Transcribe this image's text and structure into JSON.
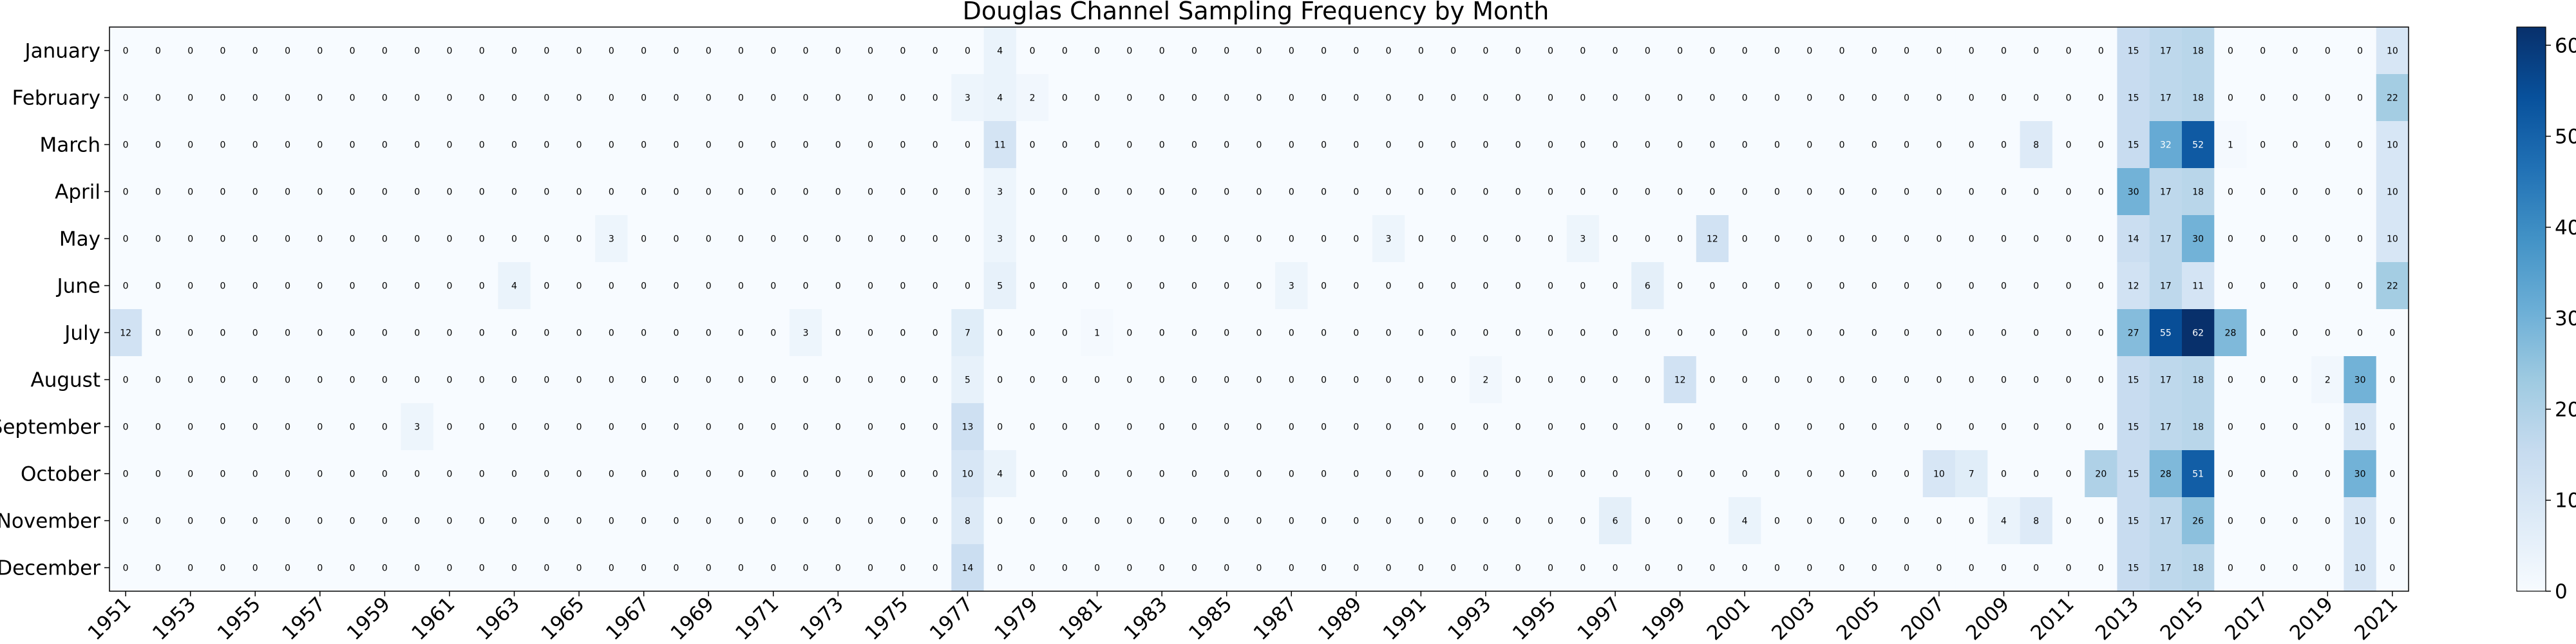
{
  "chart_data": {
    "type": "heatmap",
    "title": "Douglas Channel Sampling Frequency by Month",
    "colormap": "Blues",
    "colors": {
      "low": "#f7fbff",
      "high": "#08306b"
    },
    "x": [
      1951,
      1952,
      1953,
      1954,
      1955,
      1956,
      1957,
      1958,
      1959,
      1960,
      1961,
      1962,
      1963,
      1964,
      1965,
      1966,
      1967,
      1968,
      1969,
      1970,
      1971,
      1972,
      1973,
      1974,
      1975,
      1976,
      1977,
      1978,
      1979,
      1980,
      1981,
      1982,
      1983,
      1984,
      1985,
      1986,
      1987,
      1988,
      1989,
      1990,
      1991,
      1992,
      1993,
      1994,
      1995,
      1996,
      1997,
      1998,
      1999,
      2000,
      2001,
      2002,
      2003,
      2004,
      2005,
      2006,
      2007,
      2008,
      2009,
      2010,
      2011,
      2012,
      2013,
      2014,
      2015,
      2016,
      2017,
      2018,
      2019,
      2020,
      2021
    ],
    "x_tick_labels": [
      "1951",
      "1953",
      "1955",
      "1957",
      "1959",
      "1961",
      "1963",
      "1965",
      "1967",
      "1969",
      "1971",
      "1973",
      "1975",
      "1977",
      "1979",
      "1981",
      "1983",
      "1985",
      "1987",
      "1989",
      "1991",
      "1993",
      "1995",
      "1997",
      "1999",
      "2001",
      "2003",
      "2005",
      "2007",
      "2009",
      "2011",
      "2013",
      "2015",
      "2017",
      "2019",
      "2021"
    ],
    "y": [
      "January",
      "February",
      "March",
      "April",
      "May",
      "June",
      "July",
      "August",
      "September",
      "October",
      "November",
      "December"
    ],
    "z": [
      [
        0,
        0,
        0,
        0,
        0,
        0,
        0,
        0,
        0,
        0,
        0,
        0,
        0,
        0,
        0,
        0,
        0,
        0,
        0,
        0,
        0,
        0,
        0,
        0,
        0,
        0,
        0,
        4,
        0,
        0,
        0,
        0,
        0,
        0,
        0,
        0,
        0,
        0,
        0,
        0,
        0,
        0,
        0,
        0,
        0,
        0,
        0,
        0,
        0,
        0,
        0,
        0,
        0,
        0,
        0,
        0,
        0,
        0,
        0,
        0,
        0,
        0,
        15,
        17,
        18,
        0,
        0,
        0,
        0,
        0,
        10
      ],
      [
        0,
        0,
        0,
        0,
        0,
        0,
        0,
        0,
        0,
        0,
        0,
        0,
        0,
        0,
        0,
        0,
        0,
        0,
        0,
        0,
        0,
        0,
        0,
        0,
        0,
        0,
        3,
        4,
        2,
        0,
        0,
        0,
        0,
        0,
        0,
        0,
        0,
        0,
        0,
        0,
        0,
        0,
        0,
        0,
        0,
        0,
        0,
        0,
        0,
        0,
        0,
        0,
        0,
        0,
        0,
        0,
        0,
        0,
        0,
        0,
        0,
        0,
        15,
        17,
        18,
        0,
        0,
        0,
        0,
        0,
        22
      ],
      [
        0,
        0,
        0,
        0,
        0,
        0,
        0,
        0,
        0,
        0,
        0,
        0,
        0,
        0,
        0,
        0,
        0,
        0,
        0,
        0,
        0,
        0,
        0,
        0,
        0,
        0,
        0,
        11,
        0,
        0,
        0,
        0,
        0,
        0,
        0,
        0,
        0,
        0,
        0,
        0,
        0,
        0,
        0,
        0,
        0,
        0,
        0,
        0,
        0,
        0,
        0,
        0,
        0,
        0,
        0,
        0,
        0,
        0,
        0,
        8,
        0,
        0,
        15,
        32,
        52,
        1,
        0,
        0,
        0,
        0,
        10
      ],
      [
        0,
        0,
        0,
        0,
        0,
        0,
        0,
        0,
        0,
        0,
        0,
        0,
        0,
        0,
        0,
        0,
        0,
        0,
        0,
        0,
        0,
        0,
        0,
        0,
        0,
        0,
        0,
        3,
        0,
        0,
        0,
        0,
        0,
        0,
        0,
        0,
        0,
        0,
        0,
        0,
        0,
        0,
        0,
        0,
        0,
        0,
        0,
        0,
        0,
        0,
        0,
        0,
        0,
        0,
        0,
        0,
        0,
        0,
        0,
        0,
        0,
        0,
        30,
        17,
        18,
        0,
        0,
        0,
        0,
        0,
        10
      ],
      [
        0,
        0,
        0,
        0,
        0,
        0,
        0,
        0,
        0,
        0,
        0,
        0,
        0,
        0,
        0,
        3,
        0,
        0,
        0,
        0,
        0,
        0,
        0,
        0,
        0,
        0,
        0,
        3,
        0,
        0,
        0,
        0,
        0,
        0,
        0,
        0,
        0,
        0,
        0,
        3,
        0,
        0,
        0,
        0,
        0,
        3,
        0,
        0,
        0,
        12,
        0,
        0,
        0,
        0,
        0,
        0,
        0,
        0,
        0,
        0,
        0,
        0,
        14,
        17,
        30,
        0,
        0,
        0,
        0,
        0,
        10
      ],
      [
        0,
        0,
        0,
        0,
        0,
        0,
        0,
        0,
        0,
        0,
        0,
        0,
        4,
        0,
        0,
        0,
        0,
        0,
        0,
        0,
        0,
        0,
        0,
        0,
        0,
        0,
        0,
        5,
        0,
        0,
        0,
        0,
        0,
        0,
        0,
        0,
        3,
        0,
        0,
        0,
        0,
        0,
        0,
        0,
        0,
        0,
        0,
        6,
        0,
        0,
        0,
        0,
        0,
        0,
        0,
        0,
        0,
        0,
        0,
        0,
        0,
        0,
        12,
        17,
        11,
        0,
        0,
        0,
        0,
        0,
        22
      ],
      [
        12,
        0,
        0,
        0,
        0,
        0,
        0,
        0,
        0,
        0,
        0,
        0,
        0,
        0,
        0,
        0,
        0,
        0,
        0,
        0,
        0,
        3,
        0,
        0,
        0,
        0,
        7,
        0,
        0,
        0,
        1,
        0,
        0,
        0,
        0,
        0,
        0,
        0,
        0,
        0,
        0,
        0,
        0,
        0,
        0,
        0,
        0,
        0,
        0,
        0,
        0,
        0,
        0,
        0,
        0,
        0,
        0,
        0,
        0,
        0,
        0,
        0,
        27,
        55,
        62,
        28,
        0,
        0,
        0,
        0,
        0
      ],
      [
        0,
        0,
        0,
        0,
        0,
        0,
        0,
        0,
        0,
        0,
        0,
        0,
        0,
        0,
        0,
        0,
        0,
        0,
        0,
        0,
        0,
        0,
        0,
        0,
        0,
        0,
        5,
        0,
        0,
        0,
        0,
        0,
        0,
        0,
        0,
        0,
        0,
        0,
        0,
        0,
        0,
        0,
        2,
        0,
        0,
        0,
        0,
        0,
        12,
        0,
        0,
        0,
        0,
        0,
        0,
        0,
        0,
        0,
        0,
        0,
        0,
        0,
        15,
        17,
        18,
        0,
        0,
        0,
        2,
        30,
        0
      ],
      [
        0,
        0,
        0,
        0,
        0,
        0,
        0,
        0,
        0,
        3,
        0,
        0,
        0,
        0,
        0,
        0,
        0,
        0,
        0,
        0,
        0,
        0,
        0,
        0,
        0,
        0,
        13,
        0,
        0,
        0,
        0,
        0,
        0,
        0,
        0,
        0,
        0,
        0,
        0,
        0,
        0,
        0,
        0,
        0,
        0,
        0,
        0,
        0,
        0,
        0,
        0,
        0,
        0,
        0,
        0,
        0,
        0,
        0,
        0,
        0,
        0,
        0,
        15,
        17,
        18,
        0,
        0,
        0,
        0,
        10,
        0
      ],
      [
        0,
        0,
        0,
        0,
        0,
        0,
        0,
        0,
        0,
        0,
        0,
        0,
        0,
        0,
        0,
        0,
        0,
        0,
        0,
        0,
        0,
        0,
        0,
        0,
        0,
        0,
        10,
        4,
        0,
        0,
        0,
        0,
        0,
        0,
        0,
        0,
        0,
        0,
        0,
        0,
        0,
        0,
        0,
        0,
        0,
        0,
        0,
        0,
        0,
        0,
        0,
        0,
        0,
        0,
        0,
        0,
        10,
        7,
        0,
        0,
        0,
        20,
        15,
        28,
        51,
        0,
        0,
        0,
        0,
        30,
        0
      ],
      [
        0,
        0,
        0,
        0,
        0,
        0,
        0,
        0,
        0,
        0,
        0,
        0,
        0,
        0,
        0,
        0,
        0,
        0,
        0,
        0,
        0,
        0,
        0,
        0,
        0,
        0,
        8,
        0,
        0,
        0,
        0,
        0,
        0,
        0,
        0,
        0,
        0,
        0,
        0,
        0,
        0,
        0,
        0,
        0,
        0,
        0,
        6,
        0,
        0,
        0,
        4,
        0,
        0,
        0,
        0,
        0,
        0,
        0,
        4,
        8,
        0,
        0,
        15,
        17,
        26,
        0,
        0,
        0,
        0,
        10,
        0
      ],
      [
        0,
        0,
        0,
        0,
        0,
        0,
        0,
        0,
        0,
        0,
        0,
        0,
        0,
        0,
        0,
        0,
        0,
        0,
        0,
        0,
        0,
        0,
        0,
        0,
        0,
        0,
        14,
        0,
        0,
        0,
        0,
        0,
        0,
        0,
        0,
        0,
        0,
        0,
        0,
        0,
        0,
        0,
        0,
        0,
        0,
        0,
        0,
        0,
        0,
        0,
        0,
        0,
        0,
        0,
        0,
        0,
        0,
        0,
        0,
        0,
        0,
        0,
        15,
        17,
        18,
        0,
        0,
        0,
        0,
        10,
        0
      ]
    ],
    "colorbar": {
      "ticks": [
        0,
        10,
        20,
        30,
        40,
        50,
        60
      ],
      "min": 0,
      "max": 62
    }
  }
}
